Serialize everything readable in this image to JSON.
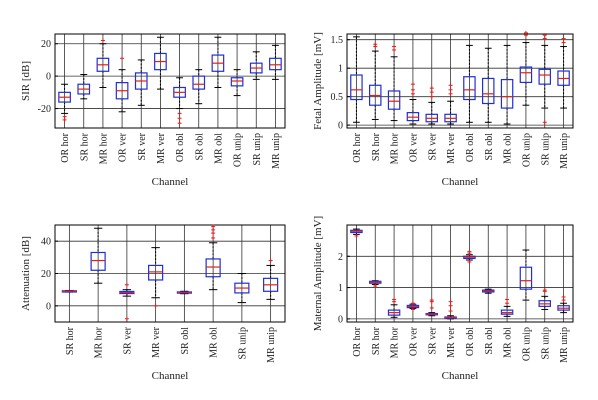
{
  "chart_data": [
    {
      "type": "box",
      "ylabel": "SIR [dB]",
      "xlabel": "Channel",
      "ylim": [
        -32,
        26
      ],
      "yticks": [
        -20,
        0,
        20
      ],
      "grid": true,
      "categories": [
        "OR hor",
        "SR hor",
        "MR hor",
        "OR ver",
        "SR ver",
        "MR ver",
        "OR obl",
        "SR obl",
        "MR obl",
        "OR unip",
        "SR unip",
        "MR unip"
      ],
      "boxes": [
        {
          "whisker_low": -23,
          "q1": -16,
          "median": -13,
          "q3": -10,
          "whisker_high": -5,
          "outliers": [
            -25,
            -27
          ]
        },
        {
          "whisker_low": -14,
          "q1": -11,
          "median": -8,
          "q3": -5,
          "whisker_high": 1,
          "outliers": []
        },
        {
          "whisker_low": -7,
          "q1": 3,
          "median": 7,
          "q3": 11,
          "whisker_high": 20,
          "outliers": [
            22
          ]
        },
        {
          "whisker_low": -22,
          "q1": -14,
          "median": -9,
          "q3": -4,
          "whisker_high": 4,
          "outliers": [
            11
          ]
        },
        {
          "whisker_low": -18,
          "q1": -8,
          "median": -3,
          "q3": 2,
          "whisker_high": 10,
          "outliers": []
        },
        {
          "whisker_low": -8,
          "q1": 4,
          "median": 9,
          "q3": 14,
          "whisker_high": 24,
          "outliers": []
        },
        {
          "whisker_low": -20,
          "q1": -13,
          "median": -10,
          "q3": -7,
          "whisker_high": -1,
          "outliers": [
            -23,
            -26,
            -29
          ]
        },
        {
          "whisker_low": -17,
          "q1": -8,
          "median": -5,
          "q3": 0,
          "whisker_high": 4,
          "outliers": []
        },
        {
          "whisker_low": -7,
          "q1": 3,
          "median": 8,
          "q3": 13,
          "whisker_high": 24,
          "outliers": []
        },
        {
          "whisker_low": -12,
          "q1": -6,
          "median": -3,
          "q3": -1,
          "whisker_high": 4,
          "outliers": []
        },
        {
          "whisker_low": -2,
          "q1": 2,
          "median": 5,
          "q3": 8,
          "whisker_high": 15,
          "outliers": []
        },
        {
          "whisker_low": -2,
          "q1": 4,
          "median": 7,
          "q3": 11,
          "whisker_high": 19,
          "outliers": []
        }
      ]
    },
    {
      "type": "box",
      "ylabel": "Fetal Amplitude [mV]",
      "xlabel": "Channel",
      "ylim": [
        -0.05,
        1.6
      ],
      "yticks": [
        0,
        0.5,
        1,
        1.5
      ],
      "grid": true,
      "categories": [
        "OR hor",
        "SR hor",
        "MR hor",
        "OR ver",
        "SR ver",
        "MR ver",
        "OR obl",
        "SR obl",
        "MR obl",
        "OR unip",
        "SR unip",
        "MR unip"
      ],
      "boxes": [
        {
          "whisker_low": 0.05,
          "q1": 0.45,
          "median": 0.62,
          "q3": 0.88,
          "whisker_high": 1.55,
          "outliers": []
        },
        {
          "whisker_low": 0.1,
          "q1": 0.35,
          "median": 0.52,
          "q3": 0.7,
          "whisker_high": 1.3,
          "outliers": [
            1.38,
            1.42
          ]
        },
        {
          "whisker_low": 0.08,
          "q1": 0.28,
          "median": 0.42,
          "q3": 0.6,
          "whisker_high": 1.2,
          "outliers": [
            1.32,
            1.38
          ]
        },
        {
          "whisker_low": 0.02,
          "q1": 0.08,
          "median": 0.14,
          "q3": 0.22,
          "whisker_high": 0.45,
          "outliers": [
            0.55,
            0.62,
            0.72
          ]
        },
        {
          "whisker_low": 0.02,
          "q1": 0.06,
          "median": 0.12,
          "q3": 0.19,
          "whisker_high": 0.4,
          "outliers": [
            0.5,
            0.58,
            0.65
          ]
        },
        {
          "whisker_low": 0.02,
          "q1": 0.06,
          "median": 0.12,
          "q3": 0.19,
          "whisker_high": 0.42,
          "outliers": [
            0.55,
            0.62,
            0.7
          ]
        },
        {
          "whisker_low": 0.05,
          "q1": 0.45,
          "median": 0.62,
          "q3": 0.85,
          "whisker_high": 1.4,
          "outliers": []
        },
        {
          "whisker_low": 0.05,
          "q1": 0.38,
          "median": 0.55,
          "q3": 0.82,
          "whisker_high": 1.35,
          "outliers": []
        },
        {
          "whisker_low": 0.02,
          "q1": 0.3,
          "median": 0.5,
          "q3": 0.8,
          "whisker_high": 1.4,
          "outliers": []
        },
        {
          "whisker_low": 0.35,
          "q1": 0.75,
          "median": 0.92,
          "q3": 1.02,
          "whisker_high": 1.45,
          "outliers": [
            1.58,
            1.62
          ]
        },
        {
          "whisker_low": 0.3,
          "q1": 0.72,
          "median": 0.88,
          "q3": 0.98,
          "whisker_high": 1.4,
          "outliers": [
            0.05,
            1.52,
            1.58
          ]
        },
        {
          "whisker_low": 0.3,
          "q1": 0.7,
          "median": 0.82,
          "q3": 0.95,
          "whisker_high": 1.38,
          "outliers": [
            1.45,
            1.52
          ]
        }
      ]
    },
    {
      "type": "box",
      "ylabel": "Attenuation [dB]",
      "xlabel": "Channel",
      "ylim": [
        -10,
        50
      ],
      "yticks": [
        0,
        20,
        40
      ],
      "grid": true,
      "categories": [
        "SR hor",
        "MR hor",
        "SR ver",
        "MR ver",
        "SR obl",
        "MR obl",
        "SR unip",
        "MR unip"
      ],
      "boxes": [
        {
          "whisker_low": 8.5,
          "q1": 8.7,
          "median": 9,
          "q3": 9.3,
          "whisker_high": 9.5,
          "outliers": []
        },
        {
          "whisker_low": 14,
          "q1": 22,
          "median": 28,
          "q3": 33,
          "whisker_high": 48,
          "outliers": []
        },
        {
          "whisker_low": 6,
          "q1": 7.6,
          "median": 8.2,
          "q3": 8.9,
          "whisker_high": 10,
          "outliers": [
            -8,
            13
          ]
        },
        {
          "whisker_low": 5,
          "q1": 16,
          "median": 21,
          "q3": 25,
          "whisker_high": 36,
          "outliers": [
            0
          ]
        },
        {
          "whisker_low": 7.5,
          "q1": 7.9,
          "median": 8.3,
          "q3": 8.6,
          "whisker_high": 9,
          "outliers": []
        },
        {
          "whisker_low": 10,
          "q1": 18,
          "median": 24,
          "q3": 29,
          "whisker_high": 39,
          "outliers": [
            42,
            45,
            47,
            49
          ]
        },
        {
          "whisker_low": 2,
          "q1": 8,
          "median": 11,
          "q3": 14,
          "whisker_high": 20,
          "outliers": []
        },
        {
          "whisker_low": 4,
          "q1": 9,
          "median": 13,
          "q3": 17,
          "whisker_high": 25,
          "outliers": [
            28
          ]
        }
      ]
    },
    {
      "type": "box",
      "ylabel": "Maternal Amplitude [mV]",
      "xlabel": "Channel",
      "ylim": [
        -0.1,
        3.0
      ],
      "yticks": [
        0,
        1,
        2
      ],
      "grid": true,
      "categories": [
        "OR hor",
        "SR hor",
        "MR hor",
        "OR ver",
        "SR ver",
        "MR ver",
        "OR obl",
        "SR obl",
        "MR obl",
        "OR unip",
        "SR unip",
        "MR unip"
      ],
      "boxes": [
        {
          "whisker_low": 2.7,
          "q1": 2.76,
          "median": 2.8,
          "q3": 2.83,
          "whisker_high": 2.87,
          "outliers": [
            2.65
          ]
        },
        {
          "whisker_low": 1.1,
          "q1": 1.14,
          "median": 1.17,
          "q3": 1.2,
          "whisker_high": 1.22,
          "outliers": [
            1.05
          ]
        },
        {
          "whisker_low": 0.05,
          "q1": 0.12,
          "median": 0.2,
          "q3": 0.28,
          "whisker_high": 0.45,
          "outliers": [
            0.55,
            0.62
          ]
        },
        {
          "whisker_low": 0.33,
          "q1": 0.36,
          "median": 0.4,
          "q3": 0.43,
          "whisker_high": 0.47,
          "outliers": [
            0.3,
            0.5
          ]
        },
        {
          "whisker_low": 0.1,
          "q1": 0.13,
          "median": 0.15,
          "q3": 0.17,
          "whisker_high": 0.2,
          "outliers": [
            0.35,
            0.55,
            0.6
          ]
        },
        {
          "whisker_low": 0.0,
          "q1": 0.02,
          "median": 0.04,
          "q3": 0.06,
          "whisker_high": 0.1,
          "outliers": [
            0.25,
            0.42,
            0.55
          ]
        },
        {
          "whisker_low": 1.88,
          "q1": 1.93,
          "median": 1.97,
          "q3": 2.0,
          "whisker_high": 2.05,
          "outliers": [
            1.82,
            2.1,
            2.15
          ]
        },
        {
          "whisker_low": 0.82,
          "q1": 0.86,
          "median": 0.89,
          "q3": 0.92,
          "whisker_high": 0.95,
          "outliers": []
        },
        {
          "whisker_low": 0.08,
          "q1": 0.15,
          "median": 0.2,
          "q3": 0.28,
          "whisker_high": 0.4,
          "outliers": [
            0.5,
            0.62
          ]
        },
        {
          "whisker_low": 0.6,
          "q1": 0.95,
          "median": 1.22,
          "q3": 1.65,
          "whisker_high": 2.2,
          "outliers": []
        },
        {
          "whisker_low": 0.3,
          "q1": 0.4,
          "median": 0.48,
          "q3": 0.58,
          "whisker_high": 0.72,
          "outliers": [
            0.88,
            0.92
          ]
        },
        {
          "whisker_low": 0.2,
          "q1": 0.28,
          "median": 0.34,
          "q3": 0.42,
          "whisker_high": 0.5,
          "outliers": [
            0.6,
            0.7
          ]
        }
      ]
    }
  ]
}
